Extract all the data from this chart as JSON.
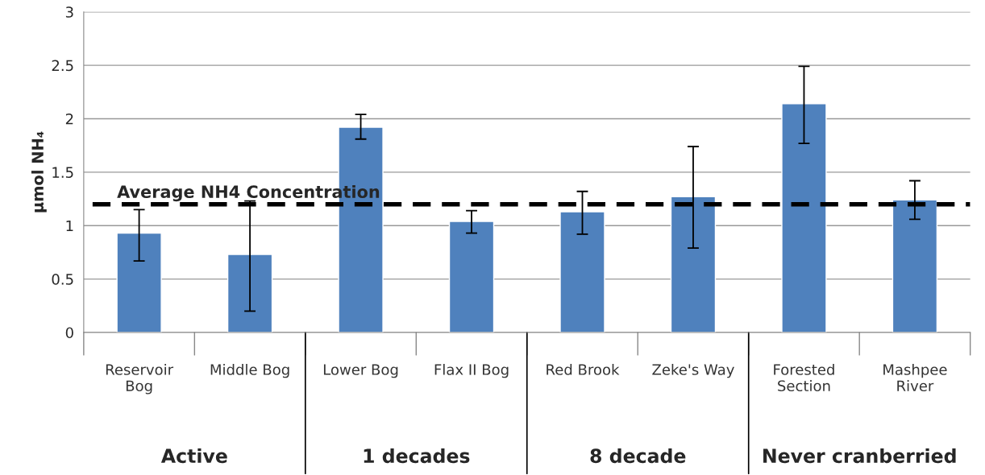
{
  "chart_data": {
    "type": "bar",
    "ylabel": "μmol NH₄",
    "categories": [
      "Reservoir\nBog",
      "Middle Bog",
      "Lower Bog",
      "Flax II Bog",
      "Red Brook",
      "Zeke's Way",
      "Forested\nSection",
      "Mashpee\nRiver"
    ],
    "values": [
      0.93,
      0.73,
      1.92,
      1.04,
      1.13,
      1.27,
      2.14,
      1.24
    ],
    "errors": [
      [
        0.67,
        1.15
      ],
      [
        0.2,
        1.23
      ],
      [
        1.81,
        2.04
      ],
      [
        0.93,
        1.14
      ],
      [
        0.92,
        1.32
      ],
      [
        0.79,
        1.74
      ],
      [
        1.77,
        2.49
      ],
      [
        1.06,
        1.42
      ]
    ],
    "color": "#4f81bd",
    "ylim": [
      0,
      3
    ],
    "yticks": [
      0,
      0.5,
      1,
      1.5,
      2,
      2.5,
      3
    ],
    "grid": "y",
    "ref_lines": [
      {
        "axis": "y",
        "value": 1.2,
        "label": "Average NH4 Concentration",
        "color": "#000000",
        "line_style": "dashed"
      }
    ],
    "annotations": [
      "Active",
      "1 decades",
      "8 decade",
      "Never cranberried"
    ]
  }
}
